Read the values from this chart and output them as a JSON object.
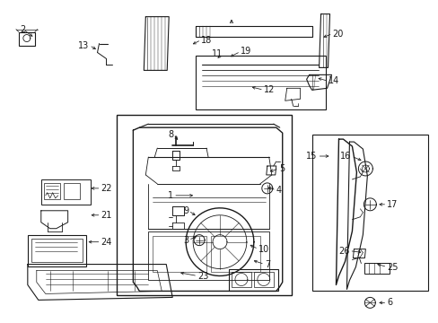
{
  "bg_color": "#ffffff",
  "line_color": "#1a1a1a",
  "figsize": [
    4.89,
    3.6
  ],
  "dpi": 100,
  "labels": {
    "1": [
      193,
      218,
      218,
      218
    ],
    "2": [
      25,
      28,
      37,
      42
    ],
    "3": [
      213,
      268,
      228,
      262
    ],
    "4": [
      305,
      222,
      295,
      215
    ],
    "5": [
      308,
      188,
      295,
      194
    ],
    "6": [
      430,
      340,
      418,
      340
    ],
    "7": [
      295,
      295,
      278,
      290
    ],
    "8": [
      193,
      148,
      201,
      156
    ],
    "9": [
      213,
      235,
      220,
      242
    ],
    "10": [
      285,
      278,
      275,
      270
    ],
    "11": [
      248,
      58,
      240,
      65
    ],
    "12": [
      293,
      98,
      278,
      94
    ],
    "13": [
      100,
      48,
      110,
      55
    ],
    "14": [
      365,
      88,
      352,
      84
    ],
    "15": [
      355,
      172,
      370,
      172
    ],
    "16": [
      393,
      172,
      405,
      178
    ],
    "17": [
      430,
      228,
      418,
      228
    ],
    "18": [
      225,
      42,
      215,
      48
    ],
    "19": [
      268,
      55,
      255,
      62
    ],
    "20": [
      370,
      35,
      358,
      40
    ],
    "21": [
      112,
      238,
      100,
      238
    ],
    "22": [
      112,
      208,
      98,
      208
    ],
    "23": [
      218,
      308,
      198,
      305
    ],
    "24": [
      112,
      268,
      95,
      268
    ],
    "25": [
      430,
      298,
      418,
      294
    ],
    "26": [
      392,
      282,
      408,
      282
    ]
  }
}
